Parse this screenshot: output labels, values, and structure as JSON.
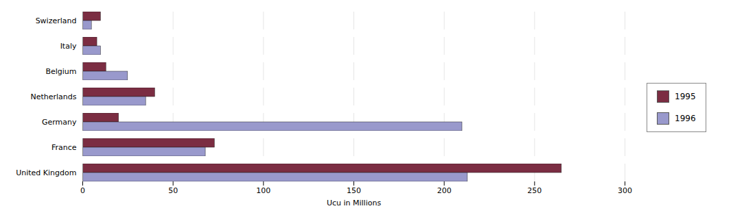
{
  "chart_data": {
    "type": "bar",
    "orientation": "horizontal",
    "categories": [
      "United Kingdom",
      "France",
      "Germany",
      "Netherlands",
      "Belgium",
      "Italy",
      "Swizerland"
    ],
    "series": [
      {
        "name": "1995",
        "color": "#7B2D42",
        "values": [
          265,
          73,
          20,
          40,
          13,
          8,
          10
        ]
      },
      {
        "name": "1996",
        "color": "#9999CC",
        "values": [
          213,
          68,
          210,
          35,
          25,
          10,
          5
        ]
      }
    ],
    "xlabel": "Ucu in Millions",
    "xlim": [
      0,
      300
    ],
    "xticks": [
      0,
      50,
      100,
      150,
      200,
      250,
      300
    ],
    "grid": true,
    "legend": "right"
  }
}
